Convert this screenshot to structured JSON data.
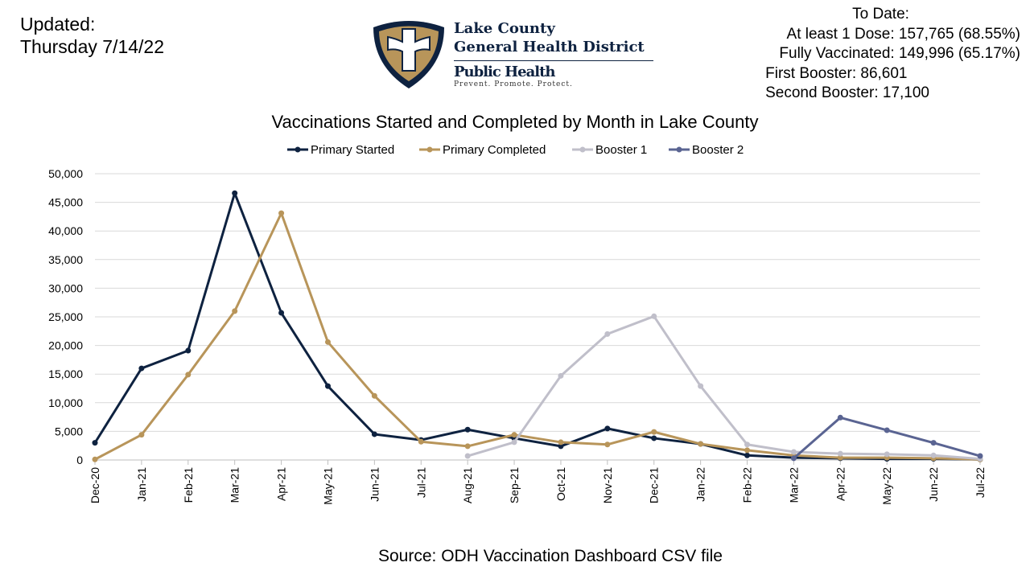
{
  "header": {
    "updated_label": "Updated:",
    "updated_date": "Thursday 7/14/22",
    "to_date_label": "To Date:",
    "stats": [
      "At least 1 Dose: 157,765 (68.55%)",
      "Fully Vaccinated: 149,996 (65.17%)",
      "First Booster: 86,601",
      "Second Booster: 17,100"
    ]
  },
  "logo": {
    "line1": "Lake County",
    "line2": "General Health District",
    "line3": "Public Health",
    "tagline": "Prevent. Promote. Protect.",
    "colors": {
      "navy": "#0e2240",
      "gold": "#b8955a"
    }
  },
  "source": "Source:  ODH Vaccination Dashboard CSV file",
  "chart_data": {
    "type": "line",
    "title": "Vaccinations Started and Completed by Month in Lake County",
    "xlabel": "",
    "ylabel": "",
    "ylim": [
      0,
      50000
    ],
    "yticks": [
      "0",
      "5,000",
      "10,000",
      "15,000",
      "20,000",
      "25,000",
      "30,000",
      "35,000",
      "40,000",
      "45,000",
      "50,000"
    ],
    "grid": true,
    "legend": "top",
    "categories": [
      "Dec-20",
      "Jan-21",
      "Feb-21",
      "Mar-21",
      "Apr-21",
      "May-21",
      "Jun-21",
      "Jul-21",
      "Aug-21",
      "Sep-21",
      "Oct-21",
      "Nov-21",
      "Dec-21",
      "Jan-22",
      "Feb-22",
      "Mar-22",
      "Apr-22",
      "May-22",
      "Jun-22",
      "Jul-22"
    ],
    "series": [
      {
        "name": "Primary Started",
        "color": "#0e2240",
        "values": [
          3000,
          16000,
          19100,
          46600,
          25700,
          12900,
          4500,
          3500,
          5300,
          3800,
          2400,
          5500,
          3800,
          2800,
          800,
          400,
          300,
          200,
          200,
          100
        ]
      },
      {
        "name": "Primary Completed",
        "color": "#b8955a",
        "values": [
          100,
          4400,
          14900,
          26000,
          43100,
          20600,
          11200,
          3200,
          2400,
          4400,
          3100,
          2700,
          4900,
          2800,
          1700,
          800,
          400,
          400,
          300,
          100
        ]
      },
      {
        "name": "Booster 1",
        "color": "#c0bfca",
        "values": [
          null,
          null,
          null,
          null,
          null,
          null,
          null,
          null,
          700,
          3100,
          14700,
          22000,
          25100,
          12900,
          2700,
          1400,
          1100,
          1000,
          800,
          200
        ]
      },
      {
        "name": "Booster 2",
        "color": "#5a6492",
        "values": [
          null,
          null,
          null,
          null,
          null,
          null,
          null,
          null,
          null,
          null,
          null,
          null,
          null,
          null,
          null,
          300,
          7400,
          5200,
          3000,
          700
        ]
      }
    ]
  }
}
